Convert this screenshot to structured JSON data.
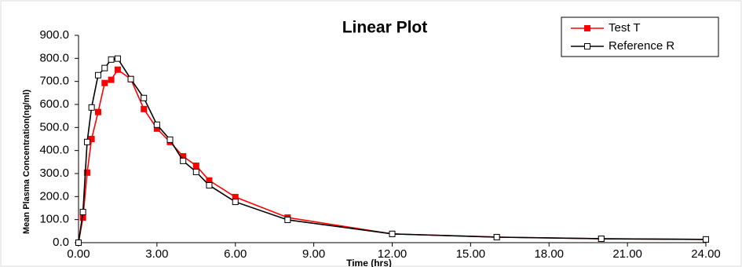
{
  "chart_data": {
    "type": "line",
    "title": "Linear Plot",
    "x_label": "Time (hrs)",
    "y_label": "Mean Plasma Concentration(ng/ml)",
    "x": [
      0,
      0.17,
      0.33,
      0.5,
      0.75,
      1,
      1.25,
      1.5,
      2,
      2.5,
      3,
      3.5,
      4,
      4.5,
      5,
      6,
      8,
      12,
      16,
      20,
      24
    ],
    "series": [
      {
        "name": "Test T",
        "color": "#ff0000",
        "marker": "filled",
        "values": [
          0,
          109,
          304,
          450,
          567,
          693,
          707,
          751,
          710,
          580,
          495,
          437,
          375,
          334,
          270,
          198,
          109,
          38,
          24,
          17,
          14
        ]
      },
      {
        "name": "Reference R",
        "color": "#000000",
        "marker": "hollow",
        "values": [
          0,
          133,
          437,
          587,
          727,
          758,
          795,
          799,
          710,
          628,
          512,
          447,
          355,
          307,
          249,
          177,
          99,
          38,
          24,
          17,
          14
        ]
      }
    ],
    "xlim": [
      0,
      24
    ],
    "xticks": [
      {
        "value": 0,
        "label": "0.00"
      },
      {
        "value": 3,
        "label": "3.00"
      },
      {
        "value": 6,
        "label": "6.00"
      },
      {
        "value": 9,
        "label": "9.00"
      },
      {
        "value": 12,
        "label": "12.00"
      },
      {
        "value": 15,
        "label": "15.00"
      },
      {
        "value": 18,
        "label": "18.00"
      },
      {
        "value": 21,
        "label": "21.00"
      },
      {
        "value": 24,
        "label": "24.00"
      }
    ],
    "ylim": [
      0,
      900
    ],
    "yticks": [
      {
        "value": 0,
        "label": "0.0"
      },
      {
        "value": 100,
        "label": "100.0"
      },
      {
        "value": 200,
        "label": "200.0"
      },
      {
        "value": 300,
        "label": "300.0"
      },
      {
        "value": 400,
        "label": "400.0"
      },
      {
        "value": 500,
        "label": "500.0"
      },
      {
        "value": 600,
        "label": "600.0"
      },
      {
        "value": 700,
        "label": "700.0"
      },
      {
        "value": 800,
        "label": "800.0"
      },
      {
        "value": 900,
        "label": "900.0"
      }
    ],
    "legend": "top-right",
    "grid": false
  }
}
